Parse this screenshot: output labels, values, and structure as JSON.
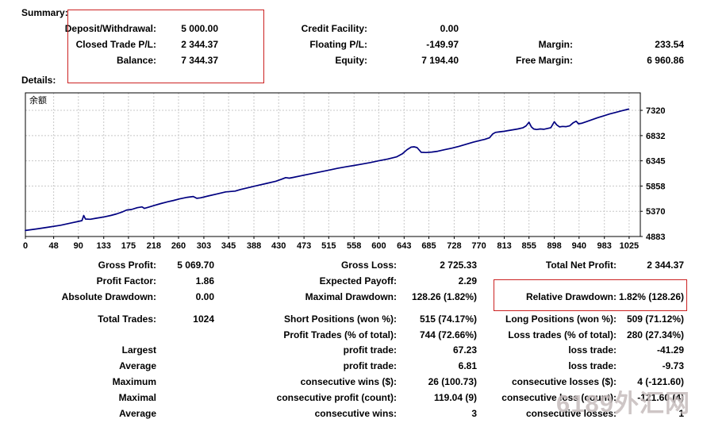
{
  "colors": {
    "line": "#000080",
    "grid": "#c8c8c8",
    "highlight_box": "#cc2222",
    "watermark": "#c6bcbc"
  },
  "watermark_text": "6189外汇网",
  "summary": {
    "title": "Summary:",
    "rows": [
      [
        [
          "Deposit/Withdrawal:",
          "5 000.00"
        ],
        [
          "Credit Facility:",
          "0.00"
        ],
        [
          "",
          ""
        ]
      ],
      [
        [
          "Closed Trade P/L:",
          "2 344.37"
        ],
        [
          "Floating P/L:",
          "-149.97"
        ],
        [
          "Margin:",
          "233.54"
        ]
      ],
      [
        [
          "Balance:",
          "7 344.37"
        ],
        [
          "Equity:",
          "7 194.40"
        ],
        [
          "Free Margin:",
          "6 960.86"
        ]
      ]
    ]
  },
  "details": {
    "title": "Details:",
    "blocks": [
      {
        "rows": [
          [
            [
              "Gross Profit:",
              "5 069.70"
            ],
            [
              "Gross Loss:",
              "2 725.33"
            ],
            [
              "Total Net Profit:",
              "2 344.37"
            ]
          ],
          [
            [
              "Profit Factor:",
              "1.86"
            ],
            [
              "Expected Payoff:",
              "2.29"
            ],
            [
              "",
              ""
            ]
          ],
          [
            [
              "Absolute Drawdown:",
              "0.00"
            ],
            [
              "Maximal Drawdown:",
              "128.26 (1.82%)"
            ],
            [
              "Relative Drawdown:",
              "1.82% (128.26)"
            ]
          ]
        ]
      },
      {
        "rows": [
          [
            [
              "Total Trades:",
              "1024"
            ],
            [
              "Short Positions (won %):",
              "515 (74.17%)"
            ],
            [
              "Long Positions (won %):",
              "509 (71.12%)"
            ]
          ],
          [
            [
              "",
              ""
            ],
            [
              "Profit Trades (% of total):",
              "744 (72.66%)"
            ],
            [
              "Loss trades (% of total):",
              "280 (27.34%)"
            ]
          ]
        ]
      },
      {
        "rows": [
          [
            [
              "Largest",
              ""
            ],
            [
              "profit trade:",
              "67.23"
            ],
            [
              "loss trade:",
              "-41.29"
            ]
          ],
          [
            [
              "Average",
              ""
            ],
            [
              "profit trade:",
              "6.81"
            ],
            [
              "loss trade:",
              "-9.73"
            ]
          ],
          [
            [
              "Maximum",
              ""
            ],
            [
              "consecutive wins ($):",
              "26 (100.73)"
            ],
            [
              "consecutive losses ($):",
              "4 (-121.60)"
            ]
          ],
          [
            [
              "Maximal",
              ""
            ],
            [
              "consecutive profit (count):",
              "119.04 (9)"
            ],
            [
              "consecutive loss (count):",
              "-121.60 (4)"
            ]
          ],
          [
            [
              "Average",
              ""
            ],
            [
              "consecutive wins:",
              "3"
            ],
            [
              "consecutive losses:",
              "1"
            ]
          ]
        ]
      }
    ]
  },
  "chart_data": {
    "type": "line",
    "title": "余额",
    "series_name": "Balance",
    "x_ticks": [
      0,
      48,
      90,
      133,
      175,
      218,
      260,
      303,
      345,
      388,
      430,
      473,
      515,
      558,
      600,
      643,
      685,
      728,
      770,
      813,
      855,
      898,
      940,
      983,
      1025
    ],
    "y_ticks": [
      4883,
      5370,
      5858,
      6345,
      6832,
      7320
    ],
    "x_range": [
      0,
      1044
    ],
    "y_range": [
      4883,
      7658
    ],
    "grid": "dashed",
    "points": [
      [
        0,
        5000
      ],
      [
        20,
        5030
      ],
      [
        40,
        5065
      ],
      [
        60,
        5100
      ],
      [
        80,
        5150
      ],
      [
        90,
        5175
      ],
      [
        96,
        5190
      ],
      [
        99,
        5290
      ],
      [
        102,
        5220
      ],
      [
        110,
        5215
      ],
      [
        120,
        5235
      ],
      [
        133,
        5260
      ],
      [
        145,
        5290
      ],
      [
        155,
        5320
      ],
      [
        165,
        5360
      ],
      [
        172,
        5395
      ],
      [
        180,
        5405
      ],
      [
        190,
        5440
      ],
      [
        198,
        5455
      ],
      [
        202,
        5425
      ],
      [
        208,
        5445
      ],
      [
        218,
        5480
      ],
      [
        230,
        5520
      ],
      [
        242,
        5555
      ],
      [
        252,
        5580
      ],
      [
        262,
        5610
      ],
      [
        275,
        5640
      ],
      [
        285,
        5655
      ],
      [
        291,
        5620
      ],
      [
        297,
        5630
      ],
      [
        310,
        5665
      ],
      [
        325,
        5705
      ],
      [
        340,
        5745
      ],
      [
        356,
        5760
      ],
      [
        365,
        5790
      ],
      [
        380,
        5830
      ],
      [
        395,
        5870
      ],
      [
        410,
        5910
      ],
      [
        425,
        5950
      ],
      [
        435,
        5990
      ],
      [
        442,
        6020
      ],
      [
        448,
        6010
      ],
      [
        455,
        6025
      ],
      [
        470,
        6060
      ],
      [
        485,
        6095
      ],
      [
        500,
        6130
      ],
      [
        515,
        6165
      ],
      [
        530,
        6200
      ],
      [
        545,
        6230
      ],
      [
        558,
        6255
      ],
      [
        570,
        6280
      ],
      [
        585,
        6310
      ],
      [
        600,
        6345
      ],
      [
        615,
        6380
      ],
      [
        630,
        6420
      ],
      [
        640,
        6480
      ],
      [
        648,
        6560
      ],
      [
        655,
        6610
      ],
      [
        660,
        6615
      ],
      [
        665,
        6600
      ],
      [
        672,
        6510
      ],
      [
        680,
        6505
      ],
      [
        690,
        6515
      ],
      [
        700,
        6530
      ],
      [
        712,
        6560
      ],
      [
        724,
        6590
      ],
      [
        736,
        6625
      ],
      [
        748,
        6665
      ],
      [
        760,
        6705
      ],
      [
        772,
        6740
      ],
      [
        780,
        6760
      ],
      [
        788,
        6790
      ],
      [
        793,
        6860
      ],
      [
        798,
        6895
      ],
      [
        805,
        6905
      ],
      [
        812,
        6915
      ],
      [
        820,
        6930
      ],
      [
        828,
        6945
      ],
      [
        836,
        6960
      ],
      [
        845,
        6985
      ],
      [
        850,
        7020
      ],
      [
        855,
        7090
      ],
      [
        859,
        7000
      ],
      [
        863,
        6960
      ],
      [
        868,
        6950
      ],
      [
        874,
        6960
      ],
      [
        880,
        6955
      ],
      [
        886,
        6970
      ],
      [
        892,
        6985
      ],
      [
        898,
        7100
      ],
      [
        902,
        7040
      ],
      [
        907,
        7000
      ],
      [
        912,
        7010
      ],
      [
        918,
        7005
      ],
      [
        924,
        7020
      ],
      [
        930,
        7080
      ],
      [
        935,
        7110
      ],
      [
        939,
        7060
      ],
      [
        944,
        7070
      ],
      [
        952,
        7100
      ],
      [
        962,
        7140
      ],
      [
        972,
        7180
      ],
      [
        982,
        7215
      ],
      [
        992,
        7250
      ],
      [
        1002,
        7280
      ],
      [
        1012,
        7310
      ],
      [
        1024,
        7344
      ]
    ]
  }
}
